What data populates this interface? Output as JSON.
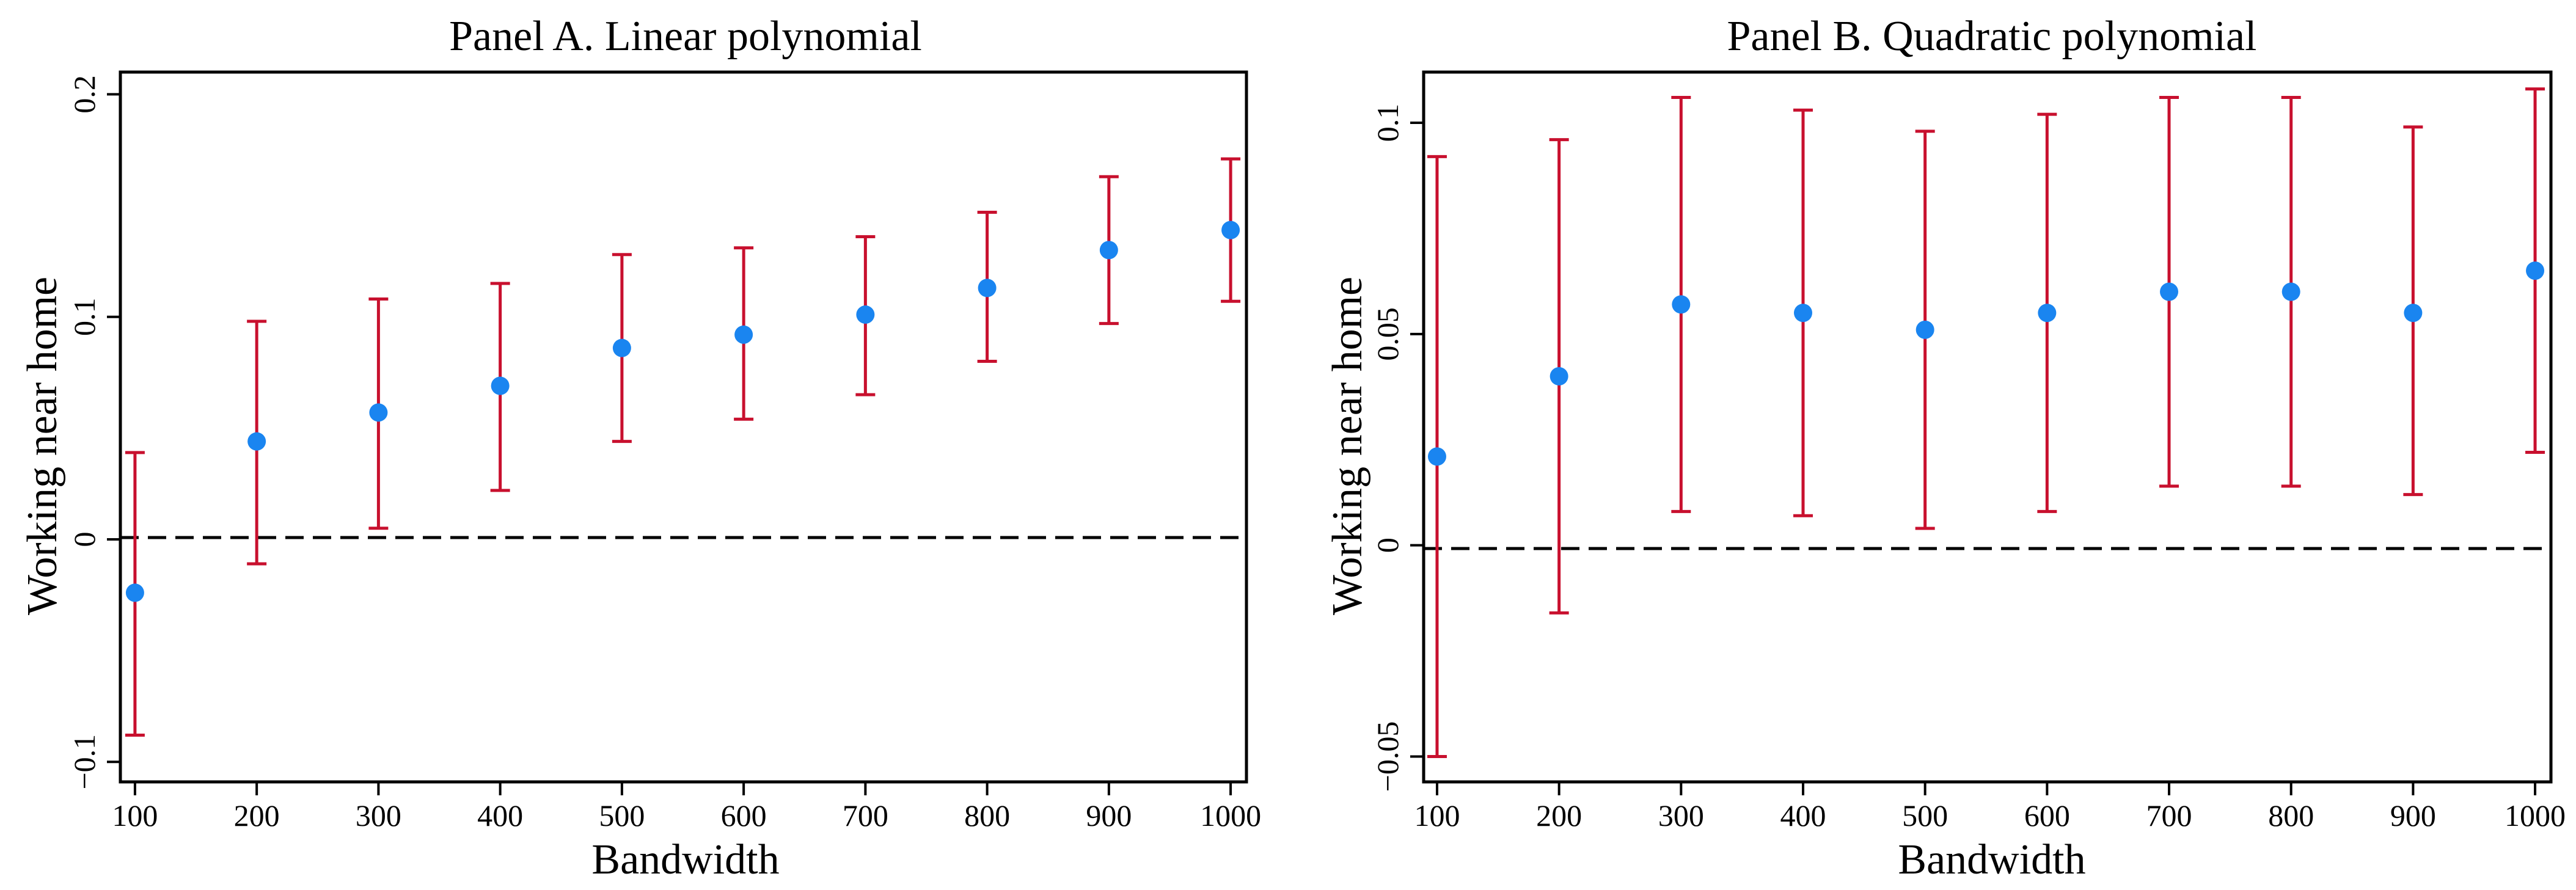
{
  "colors": {
    "point": "#1a85f0",
    "ci": "#c8102e",
    "axis": "#000000",
    "zero_line": "#000000",
    "background": "#ffffff"
  },
  "chart_data": [
    {
      "type": "scatter",
      "title": "Panel A. Linear polynomial",
      "xlabel": "Bandwidth",
      "ylabel": "Working near home",
      "x": [
        100,
        200,
        300,
        400,
        500,
        600,
        700,
        800,
        900,
        1000
      ],
      "series": [
        {
          "name": "estimate",
          "values": [
            -0.024,
            0.044,
            0.057,
            0.069,
            0.086,
            0.092,
            0.101,
            0.113,
            0.13,
            0.139
          ]
        },
        {
          "name": "ci_low",
          "values": [
            -0.088,
            -0.011,
            0.005,
            0.022,
            0.044,
            0.054,
            0.065,
            0.08,
            0.097,
            0.107
          ]
        },
        {
          "name": "ci_high",
          "values": [
            0.039,
            0.098,
            0.108,
            0.115,
            0.128,
            0.131,
            0.136,
            0.147,
            0.163,
            0.171
          ]
        }
      ],
      "xlim": [
        88,
        1013
      ],
      "ylim": [
        -0.109,
        0.21
      ],
      "xticks": [
        100,
        200,
        300,
        400,
        500,
        600,
        700,
        800,
        900,
        1000
      ],
      "xtick_labels": [
        "100",
        "200",
        "300",
        "400",
        "500",
        "600",
        "700",
        "800",
        "900",
        "1000"
      ],
      "yticks": [
        -0.1,
        0,
        0.1,
        0.2
      ],
      "ytick_labels": [
        "−0.1",
        "0",
        "0.1",
        "0.2"
      ],
      "reference_line": 0,
      "grid": false
    },
    {
      "type": "scatter",
      "title": "Panel B. Quadratic polynomial",
      "xlabel": "Bandwidth",
      "ylabel": "Working near home",
      "x": [
        100,
        200,
        300,
        400,
        500,
        600,
        700,
        800,
        900,
        1000
      ],
      "series": [
        {
          "name": "estimate",
          "values": [
            0.021,
            0.04,
            0.057,
            0.055,
            0.051,
            0.055,
            0.06,
            0.06,
            0.055,
            0.065
          ]
        },
        {
          "name": "ci_low",
          "values": [
            -0.05,
            -0.016,
            0.008,
            0.007,
            0.004,
            0.008,
            0.014,
            0.014,
            0.012,
            0.022
          ]
        },
        {
          "name": "ci_high",
          "values": [
            0.092,
            0.096,
            0.106,
            0.103,
            0.098,
            0.102,
            0.106,
            0.106,
            0.099,
            0.108
          ]
        }
      ],
      "xlim": [
        89,
        1013
      ],
      "ylim": [
        -0.056,
        0.112
      ],
      "xticks": [
        100,
        200,
        300,
        400,
        500,
        600,
        700,
        800,
        900,
        1000
      ],
      "xtick_labels": [
        "100",
        "200",
        "300",
        "400",
        "500",
        "600",
        "700",
        "800",
        "900",
        "1000"
      ],
      "yticks": [
        -0.05,
        0,
        0.05,
        0.1
      ],
      "ytick_labels": [
        "−0.05",
        "0",
        "0.05",
        "0.1"
      ],
      "reference_line": 0,
      "grid": false
    }
  ]
}
